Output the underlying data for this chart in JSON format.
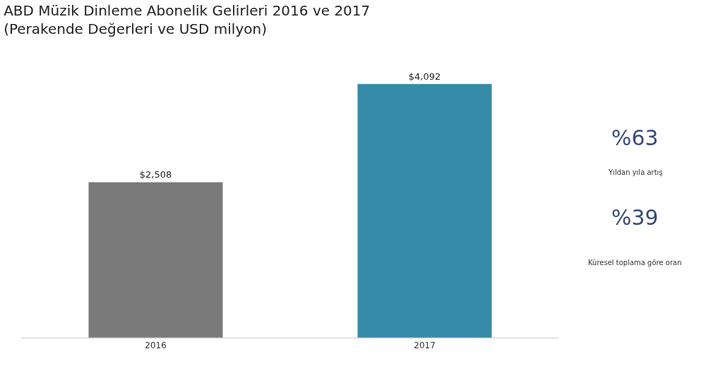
{
  "chart_data": {
    "type": "bar",
    "title": "ABD Müzik Dinleme Abonelik Gelirleri 2016 ve 2017\n(Perakende Değerleri ve USD milyon)",
    "categories": [
      "2016",
      "2017"
    ],
    "values": [
      2508,
      4092
    ],
    "value_labels": [
      "$2,508",
      "$4,092"
    ],
    "colors": [
      "#7a7a7a",
      "#358ba8"
    ],
    "annotations": [
      "%63",
      "Yıldan yıla artış",
      "%39",
      "Küresel toplama göre oran"
    ],
    "legend": false
  }
}
